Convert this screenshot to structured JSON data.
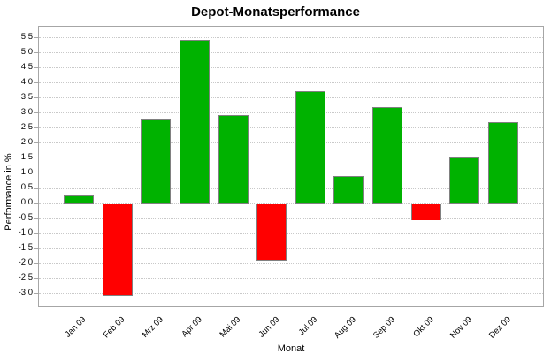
{
  "chart_data": {
    "type": "bar",
    "title": "Depot-Monatsperformance",
    "xlabel": "Monat",
    "ylabel": "Performance in %",
    "categories": [
      "Jan 09",
      "Feb 09",
      "Mrz 09",
      "Apr 09",
      "Mai 09",
      "Jun 09",
      "Jul 09",
      "Aug 09",
      "Sep 09",
      "Okt 09",
      "Nov 09",
      "Dez 09"
    ],
    "values": [
      0.3,
      -3.05,
      2.8,
      5.45,
      2.95,
      -1.9,
      3.75,
      0.9,
      3.2,
      -0.55,
      1.55,
      2.7
    ],
    "ylim": [
      -3.475,
      5.875
    ],
    "y_ticks": [
      5.5,
      5.0,
      4.5,
      4.0,
      3.5,
      3.0,
      2.5,
      2.0,
      1.5,
      1.0,
      0.5,
      0.0,
      -0.5,
      -1.0,
      -1.5,
      -2.0,
      -2.5,
      -3.0
    ],
    "y_tick_labels": [
      "5,5",
      "5,0",
      "4,5",
      "4,0",
      "3,5",
      "3,0",
      "2,5",
      "2,0",
      "1,5",
      "1,0",
      "0,5",
      "0,0",
      "-0,5",
      "-1,0",
      "-1,5",
      "-2,0",
      "-2,5",
      "-3,0"
    ],
    "grid": "horizontal-dotted",
    "legend": "none",
    "colors": {
      "positive_bar": "#00b200",
      "negative_bar": "#ff0000",
      "bar_border": "#808080",
      "gridline": "#c9c9c9",
      "plot_border": "#a6a6a6",
      "text": "#000000",
      "background": "#ffffff"
    }
  }
}
